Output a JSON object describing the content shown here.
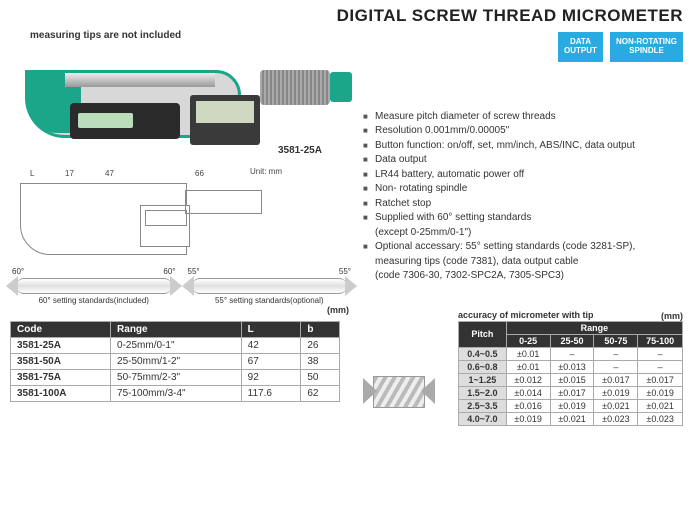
{
  "title": "DIGITAL SCREW THREAD MICROMETER",
  "note": "measuring tips are not included",
  "model_label": "3581-25A",
  "badges": {
    "b1": "DATA\nOUTPUT",
    "b2": "NON-ROTATING\nSPINDLE"
  },
  "features": [
    "Measure pitch diameter of screw threads",
    "Resolution 0.001mm/0.00005\"",
    "Button function: on/off, set, mm/inch, ABS/INC, data output",
    "Data output",
    "LR44 battery, automatic power off",
    "Non- rotating spindle",
    "Ratchet stop",
    "Supplied with 60° setting standards\n(except 0-25mm/0-1\")",
    "Optional accessary: 55° setting standards (code 3281-SP),\nmeasuring tips (code 7381), data output cable\n(code 7306-30, 7302-SPC2A, 7305-SPC3)"
  ],
  "diagram_dims": {
    "L": "L",
    "d17": "17",
    "d47": "47",
    "d66": "66",
    "unit": "Unit: mm"
  },
  "stands": {
    "s60a": "60°",
    "s60b": "60°",
    "s60cap": "60° setting standards(included)",
    "s55a": "55°",
    "s55b": "55°",
    "s55cap": "55° setting standards(optional)"
  },
  "main_unit": "(mm)",
  "main_table": {
    "headers": [
      "Code",
      "Range",
      "L",
      "b"
    ],
    "rows": [
      [
        "3581-25A",
        "0-25mm/0-1\"",
        "42",
        "26"
      ],
      [
        "3581-50A",
        "25-50mm/1-2\"",
        "67",
        "38"
      ],
      [
        "3581-75A",
        "50-75mm/2-3\"",
        "92",
        "50"
      ],
      [
        "3581-100A",
        "75-100mm/3-4\"",
        "117.6",
        "62"
      ]
    ]
  },
  "acc_title": "accuracy of micrometer with tip",
  "acc_unit": "(mm)",
  "acc_table": {
    "pitch_label": "Pitch",
    "range_label": "Range",
    "ranges": [
      "0-25",
      "25-50",
      "50-75",
      "75-100"
    ],
    "rows": [
      [
        "0.4~0.5",
        "±0.01",
        "–",
        "–",
        "–"
      ],
      [
        "0.6~0.8",
        "±0.01",
        "±0.013",
        "–",
        "–"
      ],
      [
        "1~1.25",
        "±0.012",
        "±0.015",
        "±0.017",
        "±0.017"
      ],
      [
        "1.5~2.0",
        "±0.014",
        "±0.017",
        "±0.019",
        "±0.019"
      ],
      [
        "2.5~3.5",
        "±0.016",
        "±0.019",
        "±0.021",
        "±0.021"
      ],
      [
        "4.0~7.0",
        "±0.019",
        "±0.021",
        "±0.023",
        "±0.023"
      ]
    ]
  }
}
